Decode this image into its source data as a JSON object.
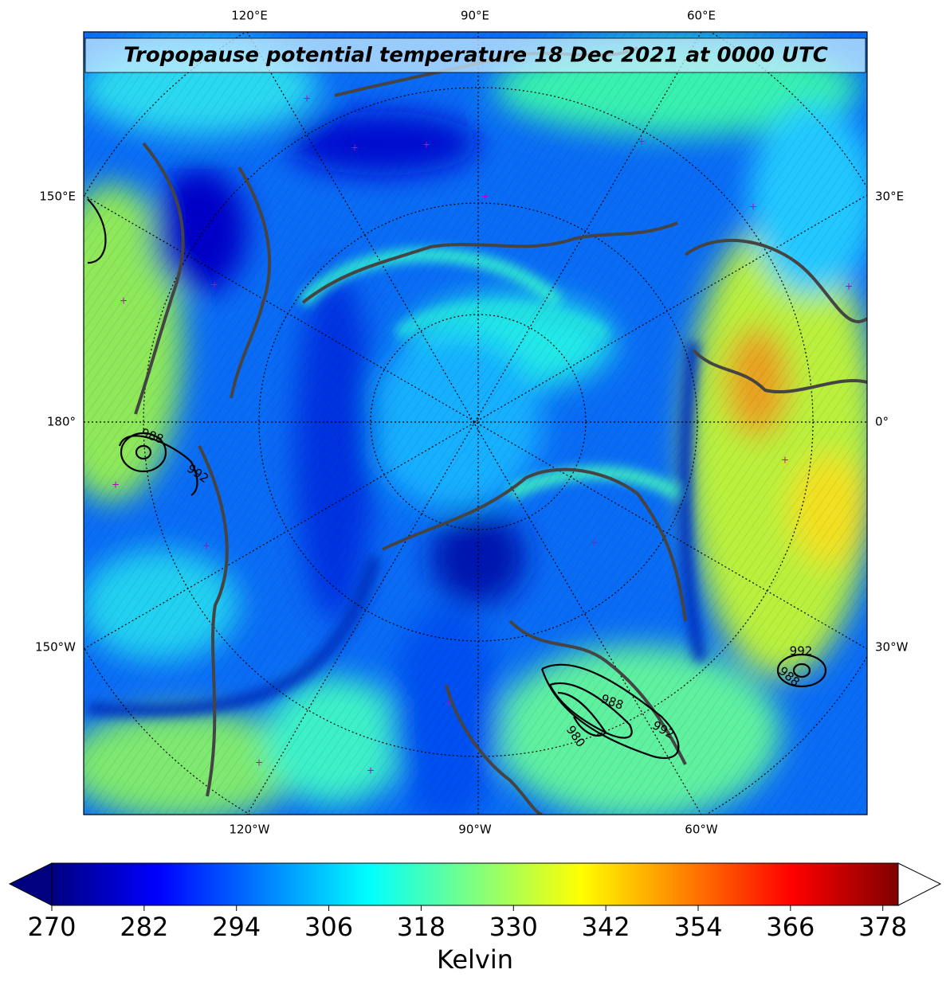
{
  "title": "Tropopause potential temperature 18 Dec 2021 at 0000 UTC",
  "map": {
    "lon_labels_top": [
      "120°E",
      "90°E",
      "60°E"
    ],
    "lon_labels_left": [
      "150°E",
      "180°",
      "150°W"
    ],
    "lon_labels_right": [
      "30°E",
      "0°",
      "30°W"
    ],
    "lon_labels_bottom": [
      "120°W",
      "90°W",
      "60°W"
    ],
    "pressure_contour_labels": [
      988,
      992,
      992,
      988,
      988,
      992,
      980
    ]
  },
  "colorbar": {
    "label": "Kelvin",
    "range": [
      270,
      380
    ],
    "ticks": [
      270,
      282,
      294,
      306,
      318,
      330,
      342,
      354,
      366,
      378
    ]
  }
}
